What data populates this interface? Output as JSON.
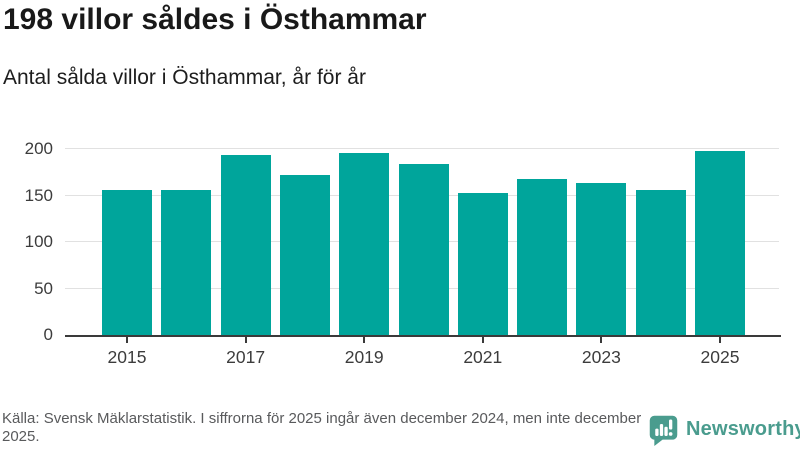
{
  "header": {
    "title": "198 villor såldes i Östhammar",
    "subtitle": "Antal sålda villor i Östhammar, år för år"
  },
  "chart_data": {
    "type": "bar",
    "title": "198 villor såldes i Östhammar",
    "subtitle": "Antal sålda villor i Östhammar, år för år",
    "categories": [
      2015,
      2016,
      2017,
      2018,
      2019,
      2020,
      2021,
      2022,
      2023,
      2024,
      2025
    ],
    "values": [
      156,
      156,
      194,
      172,
      196,
      184,
      153,
      168,
      163,
      156,
      198
    ],
    "xlabel": "",
    "ylabel": "",
    "ylim": [
      0,
      200
    ],
    "yticks": [
      0,
      50,
      100,
      150,
      200
    ],
    "x_tick_labels": [
      "2015",
      "2017",
      "2019",
      "2021",
      "2023",
      "2025"
    ],
    "grid": true,
    "legend": false,
    "bar_color": "#00a59b",
    "gridline_color": "#e1e1e1",
    "axis_color": "#3a3a3a"
  },
  "footer": {
    "source_text": "Källa: Svensk Mäklarstatistik. I siffrorna för 2025 ingår även december 2024, men inte december 2025.",
    "brand": {
      "name": "Newsworthy",
      "icon": "newsworthy-speech-bubble-chart-icon",
      "color": "#4a9c8e"
    }
  }
}
